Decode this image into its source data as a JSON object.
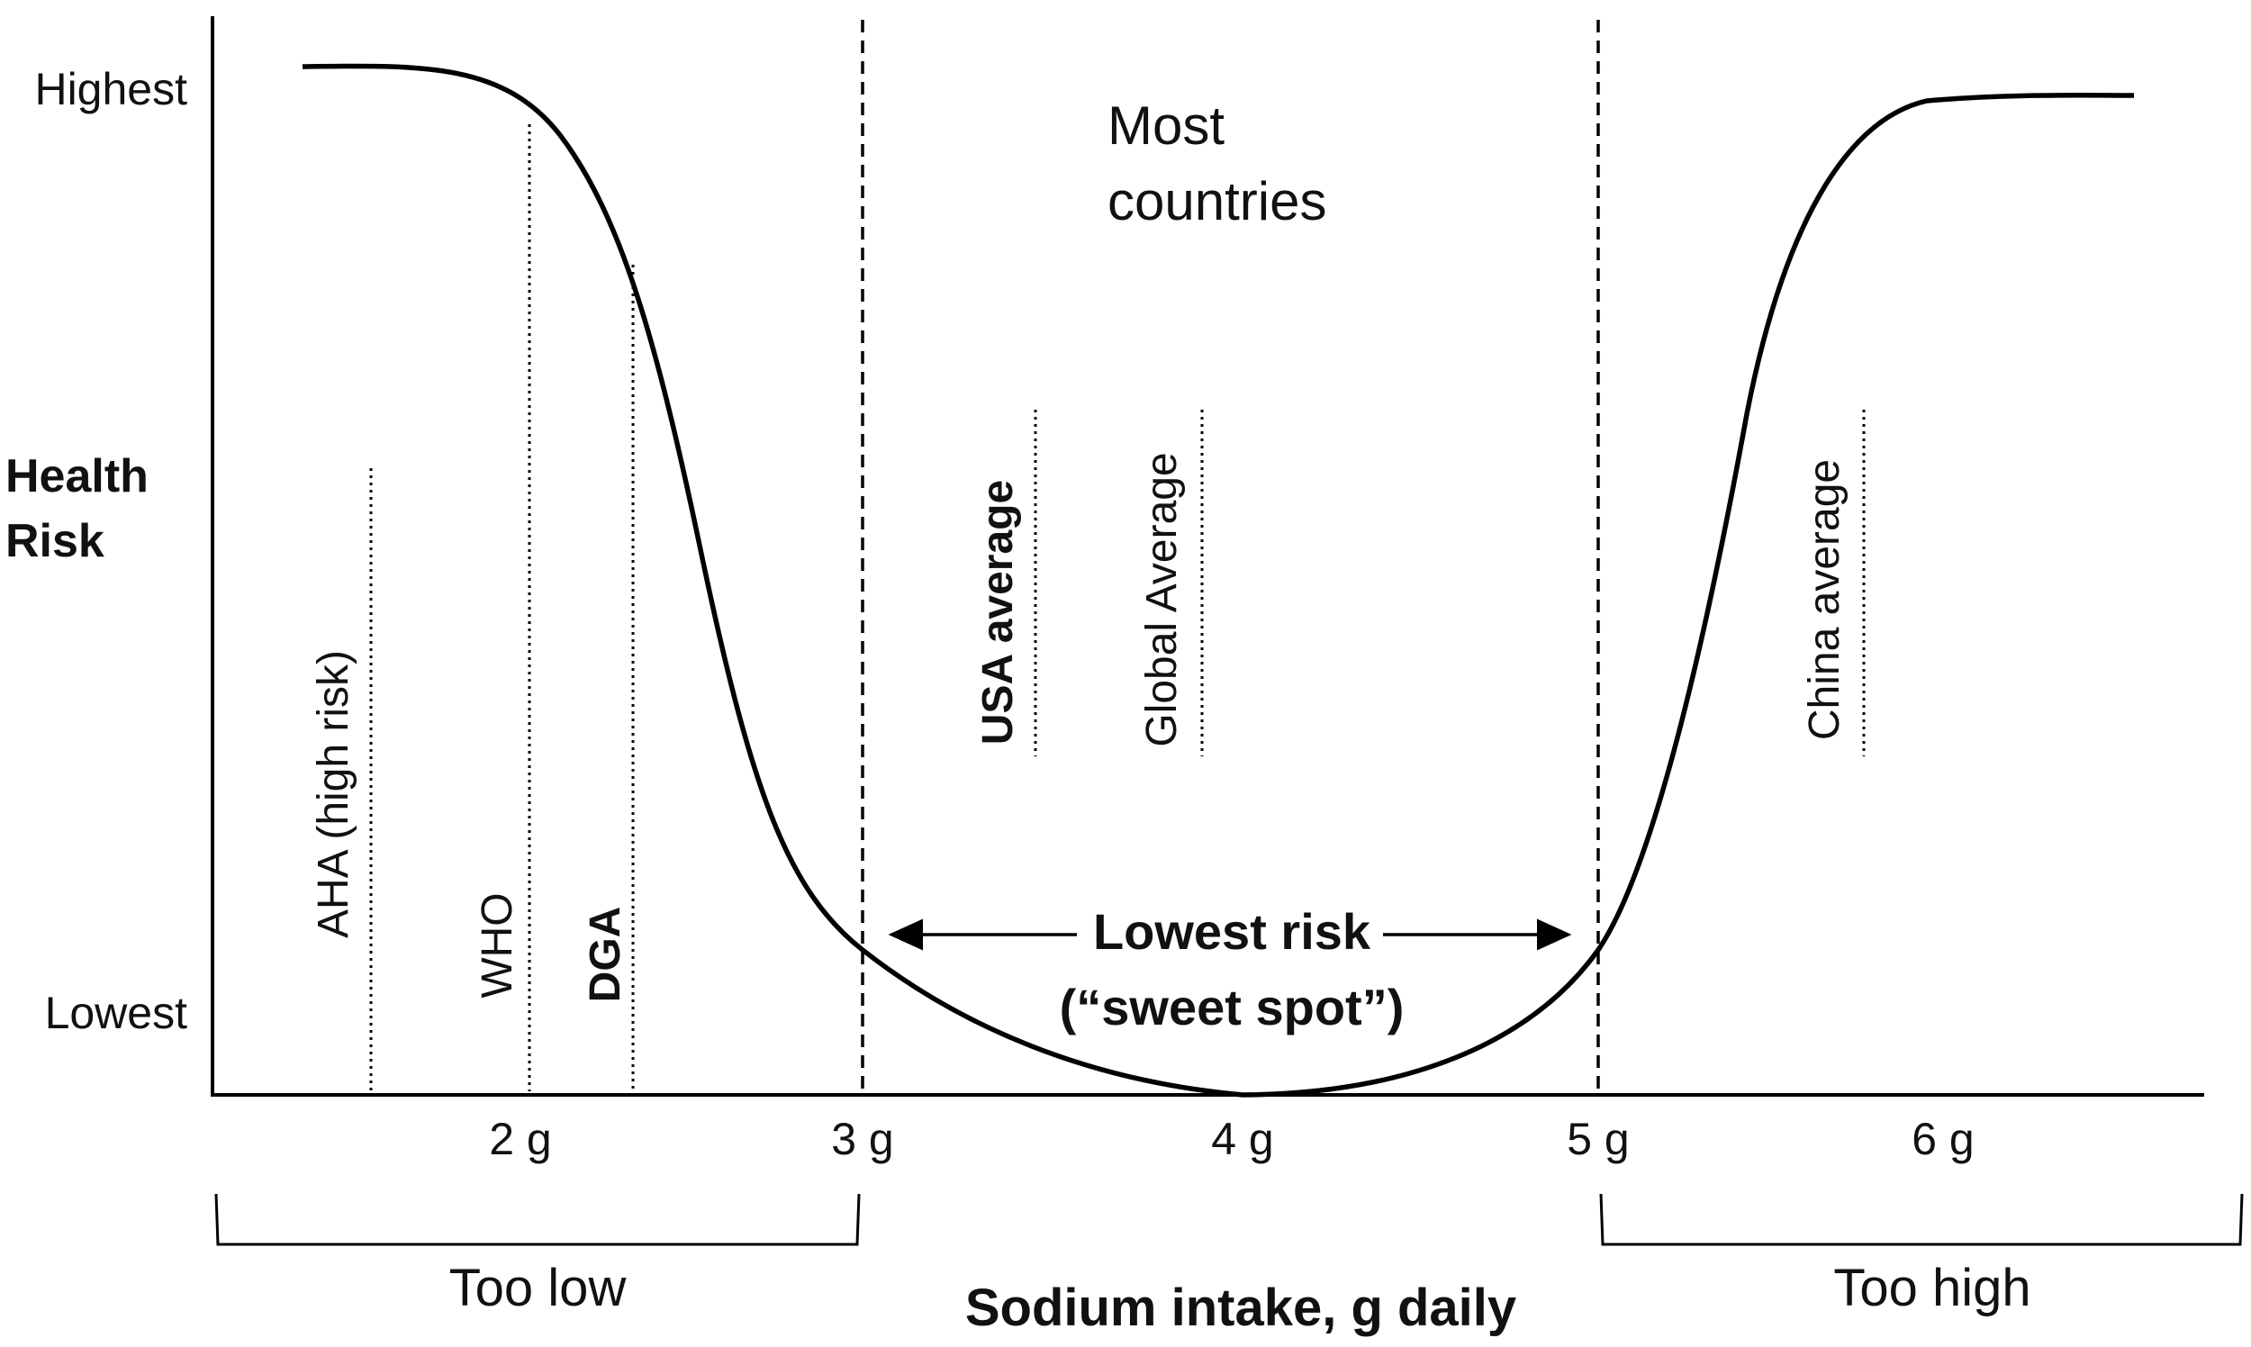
{
  "y_axis": {
    "label_line1": "Health",
    "label_line2": "Risk",
    "top_label": "Highest",
    "bottom_label": "Lowest"
  },
  "x_axis": {
    "title": "Sodium intake, g daily",
    "ticks": [
      "2 g",
      "3 g",
      "4 g",
      "5 g",
      "6 g"
    ]
  },
  "ranges": {
    "too_low": "Too low",
    "too_high": "Too high",
    "sweet_spot_line1": "Lowest risk",
    "sweet_spot_line2": "(“sweet spot”)",
    "most_countries_line1": "Most",
    "most_countries_line2": "countries"
  },
  "markers": {
    "aha": "AHA (high risk)",
    "who": "WHO",
    "dga": "DGA",
    "usa": "USA average",
    "global": "Global Average",
    "china": "China average"
  }
}
